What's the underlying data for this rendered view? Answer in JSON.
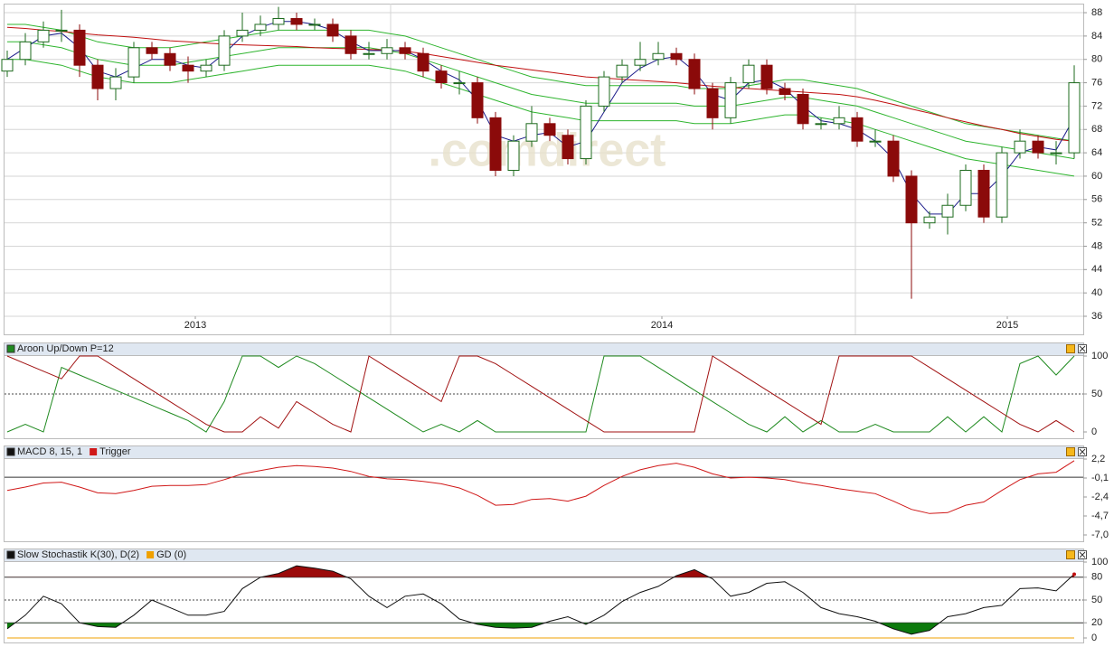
{
  "chart_data": [
    {
      "type": "candlestick",
      "watermark": ".comdirect",
      "open": [
        78,
        80,
        83,
        85,
        85,
        79,
        75,
        77,
        82,
        81,
        79,
        78,
        79,
        84,
        85,
        86,
        87,
        86,
        86,
        84,
        81,
        81,
        82,
        81,
        78,
        76,
        76,
        70,
        61,
        66,
        69,
        67,
        63,
        72,
        77,
        79,
        80,
        81,
        80,
        75,
        70,
        76,
        79,
        75,
        74,
        69,
        69,
        70,
        66,
        66,
        60,
        52,
        53,
        55,
        61,
        53,
        64,
        66,
        64,
        64
      ],
      "high": [
        81.5,
        84.5,
        86.5,
        88.5,
        86,
        80,
        78.5,
        83,
        83,
        82,
        80.5,
        80,
        85,
        88,
        87.5,
        89,
        88,
        87,
        87,
        85,
        83,
        83.5,
        83,
        82,
        79,
        78,
        77,
        71,
        67,
        72,
        70,
        68,
        73,
        78,
        80,
        83,
        83,
        82,
        81,
        76,
        77,
        80,
        80,
        76,
        75,
        70,
        72,
        71,
        68,
        67,
        61,
        54,
        57,
        62,
        62,
        65,
        68,
        67,
        66,
        79
      ],
      "low": [
        77,
        79,
        82,
        83,
        77,
        73,
        73,
        76,
        80,
        78,
        76,
        77,
        78,
        83,
        84,
        85,
        85,
        85,
        83,
        80,
        80,
        80,
        80,
        77,
        75,
        74,
        69,
        60,
        60,
        65,
        66,
        62,
        62,
        71,
        76,
        78,
        79,
        79,
        74,
        68,
        69,
        75,
        74,
        73,
        68,
        68,
        68,
        65,
        65,
        59,
        39,
        51,
        50,
        54,
        52,
        52,
        63,
        63,
        62,
        63
      ],
      "close": [
        80,
        83,
        85,
        85,
        79,
        75,
        77,
        82,
        81,
        79,
        78,
        79,
        84,
        85,
        86,
        87,
        86,
        86,
        84,
        81,
        81,
        82,
        81,
        78,
        76,
        76,
        70,
        61,
        66,
        69,
        67,
        63,
        72,
        77,
        79,
        80,
        81,
        80,
        75,
        70,
        76,
        79,
        75,
        74,
        69,
        69,
        70,
        66,
        66,
        60,
        52,
        53,
        55,
        61,
        53,
        64,
        66,
        64,
        64,
        76
      ],
      "up_color": "#ffffff",
      "up_stroke": "#1e6b1e",
      "down_color": "#8b0a0a",
      "overlays": [
        {
          "color": "#2fb52f",
          "values": [
            86,
            86,
            85.5,
            85,
            84,
            83,
            82.5,
            82,
            82,
            82,
            82.5,
            83,
            83.5,
            84,
            84.5,
            85,
            85,
            85,
            85,
            85,
            85,
            84.5,
            84,
            83,
            82,
            81,
            80,
            79,
            78,
            77,
            76.5,
            76,
            75.5,
            75.5,
            75.5,
            75.5,
            75.5,
            75.5,
            75,
            75,
            75,
            75.5,
            76,
            76.5,
            76.5,
            76,
            75.5,
            75,
            74,
            73,
            72,
            71,
            70,
            69,
            68.5,
            68,
            67.5,
            67,
            66.5,
            66
          ]
        },
        {
          "color": "#2fb52f",
          "values": [
            83,
            83,
            82.5,
            82,
            81,
            80,
            79.5,
            79,
            79,
            79,
            79.5,
            80,
            80.5,
            81,
            81.5,
            82,
            82,
            82,
            82,
            82,
            82,
            81.5,
            81,
            80,
            79,
            78,
            77,
            76,
            75,
            74,
            73.5,
            73,
            72.5,
            72.5,
            72.5,
            72.5,
            72.5,
            72.5,
            72,
            72,
            72,
            72.5,
            73,
            73.5,
            73.5,
            73,
            72.5,
            72,
            71,
            70,
            69,
            68,
            67,
            66,
            65.5,
            65,
            64.5,
            64,
            63.5,
            63
          ]
        },
        {
          "color": "#2fb52f",
          "values": [
            80,
            80,
            79.5,
            79,
            78,
            77,
            76.5,
            76,
            76,
            76,
            76.5,
            77,
            77.5,
            78,
            78.5,
            79,
            79,
            79,
            79,
            79,
            79,
            78.5,
            78,
            77,
            76,
            75,
            74,
            73,
            72,
            71,
            70.5,
            70,
            69.5,
            69.5,
            69.5,
            69.5,
            69.5,
            69.5,
            69,
            69,
            69,
            69.5,
            70,
            70.5,
            70.5,
            70,
            69.5,
            69,
            68,
            67,
            66,
            65,
            64,
            63,
            62.5,
            62,
            61.5,
            61,
            60.5,
            60
          ]
        },
        {
          "color": "#c01010",
          "values": [
            85.5,
            85.3,
            85,
            84.8,
            84.5,
            84.2,
            84,
            83.8,
            83.5,
            83.2,
            83,
            82.8,
            82.6,
            82.5,
            82.4,
            82.3,
            82.2,
            82,
            81.9,
            81.8,
            81.7,
            81.6,
            81.4,
            81,
            80.5,
            80,
            79.5,
            79,
            78.6,
            78.2,
            77.8,
            77.4,
            77,
            76.8,
            76.6,
            76.4,
            76.2,
            76,
            75.7,
            75.4,
            75.2,
            75,
            74.8,
            74.6,
            74.4,
            74.2,
            74,
            73.6,
            73,
            72.3,
            71.5,
            70.8,
            70,
            69.3,
            68.6,
            68,
            67.3,
            66.8,
            66.3,
            66
          ]
        },
        {
          "color": "#1c1c8a",
          "values": [
            80,
            82,
            84,
            84.5,
            82,
            78,
            77,
            78.5,
            80,
            80,
            79,
            78.5,
            81,
            84,
            85.5,
            86.5,
            86.5,
            86,
            85,
            83,
            81.5,
            81.5,
            81.5,
            80,
            78,
            76.5,
            73,
            67,
            66,
            67,
            67.5,
            65,
            66,
            71,
            76,
            78.5,
            80,
            80.5,
            78,
            74,
            73,
            76,
            76.5,
            75,
            72,
            69.5,
            69,
            68,
            66,
            63,
            57,
            53.5,
            53.5,
            57,
            57,
            60,
            64,
            65,
            64.5,
            70
          ]
        }
      ],
      "xlim": [
        -0.15,
        59.5
      ],
      "xticks": [
        {
          "value": 10.4,
          "label": "2013"
        },
        {
          "value": 36.2,
          "label": "2014"
        },
        {
          "value": 55.3,
          "label": "2015"
        }
      ],
      "xgrid": [
        21.2,
        46.9
      ],
      "ylim": [
        36,
        89.4
      ],
      "yticks": [
        88,
        84,
        80,
        76,
        72,
        68,
        64,
        60,
        56,
        52,
        48,
        44,
        40,
        36
      ],
      "grid": true
    },
    {
      "type": "line",
      "title": "Aroon Up/Down P=12",
      "xlim": [
        -0.15,
        59.5
      ],
      "series": [
        {
          "color": "#1f8a1f",
          "values": [
            0,
            10,
            0,
            85,
            75,
            65,
            55,
            45,
            35,
            25,
            15,
            0,
            40,
            100,
            100,
            85,
            100,
            90,
            75,
            60,
            45,
            30,
            15,
            0,
            10,
            0,
            15,
            0,
            0,
            0,
            0,
            0,
            0,
            100,
            100,
            100,
            85,
            70,
            55,
            40,
            25,
            10,
            0,
            20,
            0,
            15,
            0,
            0,
            10,
            0,
            0,
            0,
            20,
            0,
            20,
            0,
            90,
            100,
            75,
            100
          ]
        },
        {
          "color": "#a01010",
          "values": [
            100,
            90,
            80,
            70,
            100,
            100,
            85,
            70,
            55,
            40,
            25,
            10,
            0,
            0,
            20,
            5,
            40,
            25,
            10,
            0,
            100,
            85,
            70,
            55,
            40,
            100,
            100,
            90,
            75,
            60,
            45,
            30,
            15,
            0,
            0,
            0,
            0,
            0,
            0,
            100,
            85,
            70,
            55,
            40,
            25,
            10,
            100,
            100,
            100,
            100,
            100,
            85,
            70,
            55,
            40,
            25,
            10,
            0,
            15,
            0
          ]
        }
      ],
      "ylim": [
        0,
        100
      ],
      "yticks": [
        100,
        50,
        0
      ],
      "dotted_lines": [
        50
      ]
    },
    {
      "type": "line",
      "title": "MACD 8, 15, 1",
      "xlim": [
        -0.15,
        59.5
      ],
      "series": [
        {
          "name": "Trigger",
          "color": "#d01818",
          "values": [
            -1.6,
            -1.2,
            -0.7,
            -0.6,
            -1.2,
            -1.9,
            -2.0,
            -1.6,
            -1.1,
            -1.0,
            -1.0,
            -0.9,
            -0.3,
            0.4,
            0.8,
            1.2,
            1.4,
            1.3,
            1.1,
            0.7,
            0.1,
            -0.2,
            -0.3,
            -0.5,
            -0.8,
            -1.3,
            -2.2,
            -3.4,
            -3.3,
            -2.7,
            -2.6,
            -2.9,
            -2.3,
            -1.0,
            0.1,
            0.9,
            1.4,
            1.7,
            1.2,
            0.4,
            -0.1,
            0.0,
            -0.1,
            -0.3,
            -0.7,
            -1.0,
            -1.4,
            -1.7,
            -2.0,
            -2.9,
            -3.9,
            -4.4,
            -4.3,
            -3.4,
            -3.0,
            -1.6,
            -0.3,
            0.4,
            0.6,
            2.0
          ]
        }
      ],
      "ylim": [
        -7.0,
        2.2
      ],
      "yticks": [
        {
          "value": 2.2,
          "label": "2,2"
        },
        {
          "value": -0.1,
          "label": "-0,1"
        },
        {
          "value": -2.4,
          "label": "-2,4"
        },
        {
          "value": -4.7,
          "label": "-4,7"
        },
        {
          "value": -7.0,
          "label": "-7,0"
        }
      ],
      "reference_lines": [
        0
      ]
    },
    {
      "type": "line",
      "title": "Slow Stochastik K(30), D(2)",
      "xlim": [
        -0.15,
        59.5
      ],
      "series": [
        {
          "color": "#111111",
          "values": [
            12,
            30,
            55,
            45,
            20,
            15,
            14,
            30,
            50,
            40,
            30,
            30,
            35,
            65,
            80,
            85,
            95,
            92,
            88,
            78,
            55,
            40,
            55,
            58,
            45,
            25,
            18,
            14,
            13,
            14,
            22,
            28,
            18,
            30,
            48,
            60,
            68,
            82,
            90,
            78,
            55,
            60,
            72,
            74,
            60,
            40,
            32,
            28,
            22,
            12,
            5,
            10,
            28,
            32,
            40,
            43,
            65,
            66,
            62,
            84
          ]
        },
        {
          "name": "GD (0)",
          "color": "#f0a000",
          "values": [
            0,
            0,
            0,
            0,
            0,
            0,
            0,
            0,
            0,
            0,
            0,
            0,
            0,
            0,
            0,
            0,
            0,
            0,
            0,
            0,
            0,
            0,
            0,
            0,
            0,
            0,
            0,
            0,
            0,
            0,
            0,
            0,
            0,
            0,
            0,
            0,
            0,
            0,
            0,
            0,
            0,
            0,
            0,
            0,
            0,
            0,
            0,
            0,
            0,
            0,
            0,
            0,
            0,
            0,
            0,
            0,
            0,
            0,
            0,
            0
          ]
        }
      ],
      "ylim": [
        0,
        100
      ],
      "yticks": [
        100,
        80,
        50,
        20,
        0
      ],
      "reference_lines": [
        80,
        20
      ],
      "dotted_lines": [
        50
      ],
      "fill_above": {
        "value": 80,
        "color": "#9b0a0a"
      },
      "fill_below": {
        "value": 20,
        "color": "#0d7a0d"
      }
    }
  ]
}
